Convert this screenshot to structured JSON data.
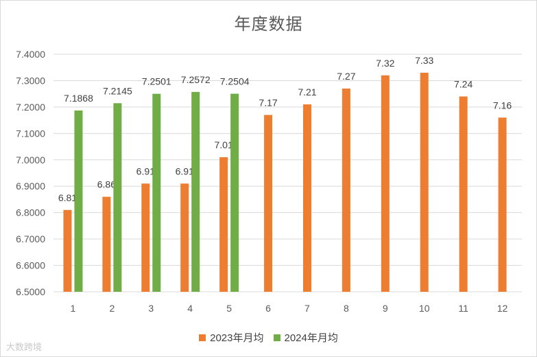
{
  "chart_data": {
    "type": "bar",
    "title": "年度数据",
    "categories": [
      "1",
      "2",
      "3",
      "4",
      "5",
      "6",
      "7",
      "8",
      "9",
      "10",
      "11",
      "12"
    ],
    "series": [
      {
        "name": "2023年月均",
        "color": "#ED7D31",
        "values": [
          6.81,
          6.86,
          6.91,
          6.91,
          7.01,
          7.17,
          7.21,
          7.27,
          7.32,
          7.33,
          7.24,
          7.16
        ],
        "labels": [
          "6.81",
          "6.86",
          "6.91",
          "6.91",
          "7.01",
          "7.17",
          "7.21",
          "7.27",
          "7.32",
          "7.33",
          "7.24",
          "7.16"
        ]
      },
      {
        "name": "2024年月均",
        "color": "#70AD47",
        "values": [
          7.1868,
          7.2145,
          7.2501,
          7.2572,
          7.2504,
          null,
          null,
          null,
          null,
          null,
          null,
          null
        ],
        "labels": [
          "7.1868",
          "7.2145",
          "7.2501",
          "7.2572",
          "7.2504",
          "",
          "",
          "",
          "",
          "",
          "",
          ""
        ]
      }
    ],
    "ylim": [
      6.5,
      7.4
    ],
    "yticks": [
      "6.5000",
      "6.6000",
      "6.7000",
      "6.8000",
      "6.9000",
      "7.0000",
      "7.1000",
      "7.2000",
      "7.3000",
      "7.4000"
    ],
    "grid": true,
    "legend_position": "bottom"
  },
  "watermark": "大数跨境"
}
